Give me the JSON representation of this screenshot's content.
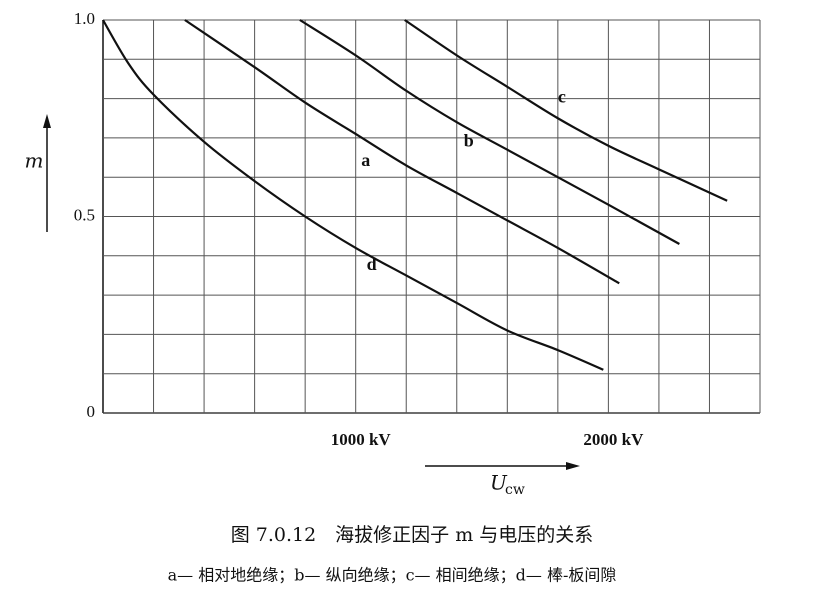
{
  "chart_data": {
    "type": "line",
    "ylabel": "m",
    "xlabel": "U",
    "xlabel_subscript": "cw",
    "caption": "图 7.0.12　海拔修正因子 m 与电压的关系",
    "note": "a— 相对地绝缘；b— 纵向绝缘；c— 相间绝缘；d— 棒-板间隙",
    "xlim": [
      0,
      2600
    ],
    "ylim": [
      0,
      1
    ],
    "grid": true,
    "color": "#111111",
    "xticks": [
      {
        "value": 200,
        "label": null
      },
      {
        "value": 400,
        "label": null
      },
      {
        "value": 600,
        "label": null
      },
      {
        "value": 800,
        "label": null
      },
      {
        "value": 1000,
        "label": "1000 kV"
      },
      {
        "value": 1200,
        "label": null
      },
      {
        "value": 1400,
        "label": null
      },
      {
        "value": 1600,
        "label": null
      },
      {
        "value": 1800,
        "label": null
      },
      {
        "value": 2000,
        "label": "2000 kV"
      },
      {
        "value": 2200,
        "label": null
      },
      {
        "value": 2400,
        "label": null
      },
      {
        "value": 2600,
        "label": null
      }
    ],
    "yticks": [
      0,
      {
        "value": 0.1,
        "label": null
      },
      {
        "value": 0.2,
        "label": null
      },
      {
        "value": 0.3,
        "label": null
      },
      {
        "value": 0.4,
        "label": null
      },
      0.5,
      {
        "value": 0.6,
        "label": null
      },
      {
        "value": 0.7,
        "label": null
      },
      {
        "value": 0.8,
        "label": null
      },
      {
        "value": 0.9,
        "label": null
      },
      {
        "value": 1.0,
        "label": "1.0"
      }
    ],
    "series": [
      {
        "name": "a",
        "x": [
          324,
          600,
          800,
          1000,
          1200,
          1400,
          1600,
          1800,
          2043
        ],
        "values": [
          1.0,
          0.88,
          0.79,
          0.71,
          0.63,
          0.56,
          0.49,
          0.42,
          0.33
        ]
      },
      {
        "name": "b",
        "x": [
          779,
          1000,
          1200,
          1400,
          1600,
          1800,
          2000,
          2281
        ],
        "values": [
          1.0,
          0.91,
          0.82,
          0.74,
          0.67,
          0.6,
          0.53,
          0.43
        ]
      },
      {
        "name": "c",
        "x": [
          1194,
          1400,
          1600,
          1800,
          2000,
          2200,
          2470
        ],
        "values": [
          1.0,
          0.91,
          0.83,
          0.75,
          0.68,
          0.62,
          0.54
        ]
      },
      {
        "name": "d",
        "x": [
          0,
          100,
          200,
          400,
          600,
          800,
          1000,
          1200,
          1400,
          1600,
          1800,
          1980
        ],
        "values": [
          1.0,
          0.89,
          0.81,
          0.69,
          0.59,
          0.5,
          0.42,
          0.35,
          0.28,
          0.21,
          0.16,
          0.11
        ]
      }
    ]
  }
}
